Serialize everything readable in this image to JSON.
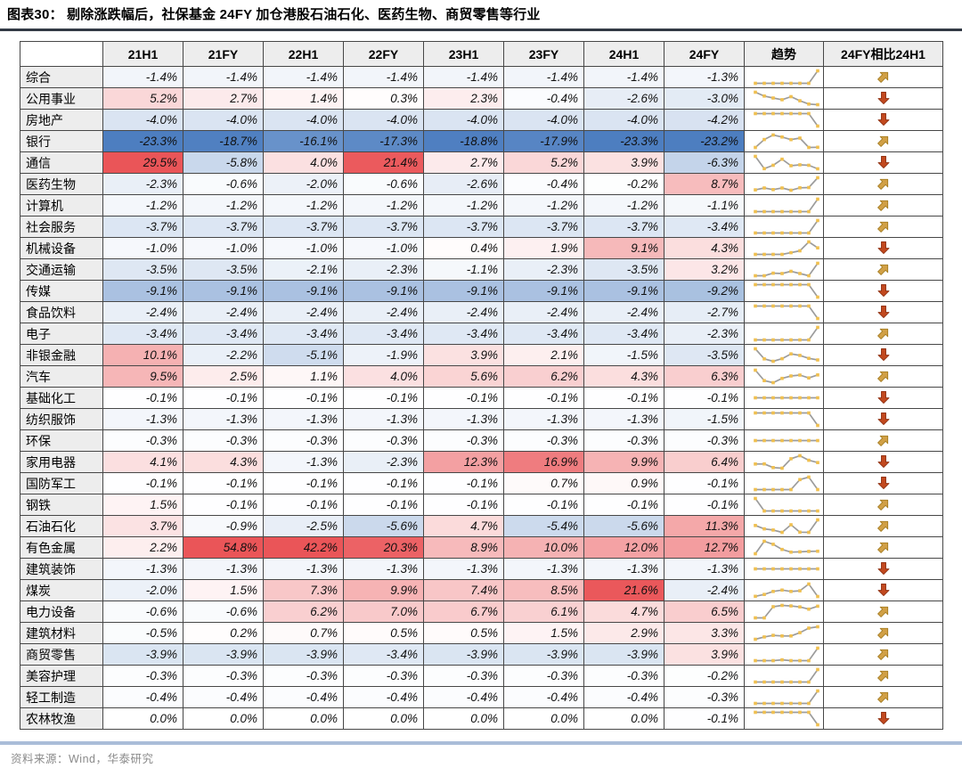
{
  "page": {
    "title": "图表30：  剔除涨跌幅后，社保基金 24FY 加仓港股石油石化、医药生物、商贸零售等行业",
    "source": "资料来源：Wind，华泰研究"
  },
  "colors": {
    "positive_max": "#ea5558",
    "negative_max": "#4d7ec0",
    "heat_mid": "#ffffff",
    "trend_line": "#9c9c9c",
    "trend_marker": "#f0c04f",
    "arrow_up_fill": "#d1a046",
    "arrow_up_stroke": "#a57d22",
    "arrow_down_fill": "#c2491f",
    "arrow_down_stroke": "#8f3012",
    "header_bg": "#ededed",
    "border": "#474747",
    "title_rule": "#333a45",
    "footer_rule": "#aabdd8",
    "footer_text": "#8a8a8a"
  },
  "chart_data": {
    "type": "table",
    "subtype": "heatmap-with-sparklines",
    "value_unit": "%",
    "value_format": "one_decimal_percent",
    "columns": [
      "21H1",
      "21FY",
      "22H1",
      "22FY",
      "23H1",
      "23FY",
      "24H1",
      "24FY",
      "趋势",
      "24FY相比24H1"
    ],
    "period_columns": [
      "21H1",
      "21FY",
      "22H1",
      "22FY",
      "23H1",
      "23FY",
      "24H1",
      "24FY"
    ],
    "trend_column_label": "趋势",
    "compare_column_label": "24FY相比24H1",
    "color_scale_note": "blue at most negative, white near zero, red at most positive",
    "rows": [
      {
        "label": "综合",
        "values": [
          -1.4,
          -1.4,
          -1.4,
          -1.4,
          -1.4,
          -1.4,
          -1.4,
          -1.3
        ],
        "arrow": "up"
      },
      {
        "label": "公用事业",
        "values": [
          5.2,
          2.7,
          1.4,
          0.3,
          2.3,
          -0.4,
          -2.6,
          -3.0
        ],
        "arrow": "down"
      },
      {
        "label": "房地产",
        "values": [
          -4.0,
          -4.0,
          -4.0,
          -4.0,
          -4.0,
          -4.0,
          -4.0,
          -4.2
        ],
        "arrow": "down"
      },
      {
        "label": "银行",
        "values": [
          -23.3,
          -18.7,
          -16.1,
          -17.3,
          -18.8,
          -17.9,
          -23.3,
          -23.2
        ],
        "arrow": "up"
      },
      {
        "label": "通信",
        "values": [
          29.5,
          -5.8,
          4.0,
          21.4,
          2.7,
          5.2,
          3.9,
          -6.3
        ],
        "arrow": "down"
      },
      {
        "label": "医药生物",
        "values": [
          -2.3,
          -0.6,
          -2.0,
          -0.6,
          -2.6,
          -0.4,
          -0.2,
          8.7
        ],
        "arrow": "up"
      },
      {
        "label": "计算机",
        "values": [
          -1.2,
          -1.2,
          -1.2,
          -1.2,
          -1.2,
          -1.2,
          -1.2,
          -1.1
        ],
        "arrow": "up"
      },
      {
        "label": "社会服务",
        "values": [
          -3.7,
          -3.7,
          -3.7,
          -3.7,
          -3.7,
          -3.7,
          -3.7,
          -3.4
        ],
        "arrow": "up"
      },
      {
        "label": "机械设备",
        "values": [
          -1.0,
          -1.0,
          -1.0,
          -1.0,
          0.4,
          1.9,
          9.1,
          4.3
        ],
        "arrow": "down"
      },
      {
        "label": "交通运输",
        "values": [
          -3.5,
          -3.5,
          -2.1,
          -2.3,
          -1.1,
          -2.3,
          -3.5,
          3.2
        ],
        "arrow": "up"
      },
      {
        "label": "传媒",
        "values": [
          -9.1,
          -9.1,
          -9.1,
          -9.1,
          -9.1,
          -9.1,
          -9.1,
          -9.2
        ],
        "arrow": "down"
      },
      {
        "label": "食品饮料",
        "values": [
          -2.4,
          -2.4,
          -2.4,
          -2.4,
          -2.4,
          -2.4,
          -2.4,
          -2.7
        ],
        "arrow": "down"
      },
      {
        "label": "电子",
        "values": [
          -3.4,
          -3.4,
          -3.4,
          -3.4,
          -3.4,
          -3.4,
          -3.4,
          -2.3
        ],
        "arrow": "up"
      },
      {
        "label": "非银金融",
        "values": [
          10.1,
          -2.2,
          -5.1,
          -1.9,
          3.9,
          2.1,
          -1.5,
          -3.5
        ],
        "arrow": "down"
      },
      {
        "label": "汽车",
        "values": [
          9.5,
          2.5,
          1.1,
          4.0,
          5.6,
          6.2,
          4.3,
          6.3
        ],
        "arrow": "up"
      },
      {
        "label": "基础化工",
        "values": [
          -0.1,
          -0.1,
          -0.1,
          -0.1,
          -0.1,
          -0.1,
          -0.1,
          -0.1
        ],
        "arrow": "down"
      },
      {
        "label": "纺织服饰",
        "values": [
          -1.3,
          -1.3,
          -1.3,
          -1.3,
          -1.3,
          -1.3,
          -1.3,
          -1.5
        ],
        "arrow": "down"
      },
      {
        "label": "环保",
        "values": [
          -0.3,
          -0.3,
          -0.3,
          -0.3,
          -0.3,
          -0.3,
          -0.3,
          -0.3
        ],
        "arrow": "up"
      },
      {
        "label": "家用电器",
        "values": [
          4.1,
          4.3,
          -1.3,
          -2.3,
          12.3,
          16.9,
          9.9,
          6.4
        ],
        "arrow": "down"
      },
      {
        "label": "国防军工",
        "values": [
          -0.1,
          -0.1,
          -0.1,
          -0.1,
          -0.1,
          0.7,
          0.9,
          -0.1
        ],
        "arrow": "down"
      },
      {
        "label": "钢铁",
        "values": [
          1.5,
          -0.1,
          -0.1,
          -0.1,
          -0.1,
          -0.1,
          -0.1,
          -0.1
        ],
        "arrow": "up"
      },
      {
        "label": "石油石化",
        "values": [
          3.7,
          -0.9,
          -2.5,
          -5.6,
          4.7,
          -5.4,
          -5.6,
          11.3
        ],
        "arrow": "up"
      },
      {
        "label": "有色金属",
        "values": [
          2.2,
          54.8,
          42.2,
          20.3,
          8.9,
          10.0,
          12.0,
          12.7
        ],
        "arrow": "up"
      },
      {
        "label": "建筑装饰",
        "values": [
          -1.3,
          -1.3,
          -1.3,
          -1.3,
          -1.3,
          -1.3,
          -1.3,
          -1.3
        ],
        "arrow": "down"
      },
      {
        "label": "煤炭",
        "values": [
          -2.0,
          1.5,
          7.3,
          9.9,
          7.4,
          8.5,
          21.6,
          -2.4
        ],
        "arrow": "down"
      },
      {
        "label": "电力设备",
        "values": [
          -0.6,
          -0.6,
          6.2,
          7.0,
          6.7,
          6.1,
          4.7,
          6.5
        ],
        "arrow": "up"
      },
      {
        "label": "建筑材料",
        "values": [
          -0.5,
          0.2,
          0.7,
          0.5,
          0.5,
          1.5,
          2.9,
          3.3
        ],
        "arrow": "up"
      },
      {
        "label": "商贸零售",
        "values": [
          -3.9,
          -3.9,
          -3.9,
          -3.4,
          -3.9,
          -3.9,
          -3.9,
          3.9
        ],
        "arrow": "up"
      },
      {
        "label": "美容护理",
        "values": [
          -0.3,
          -0.3,
          -0.3,
          -0.3,
          -0.3,
          -0.3,
          -0.3,
          -0.2
        ],
        "arrow": "up"
      },
      {
        "label": "轻工制造",
        "values": [
          -0.4,
          -0.4,
          -0.4,
          -0.4,
          -0.4,
          -0.4,
          -0.4,
          -0.3
        ],
        "arrow": "up"
      },
      {
        "label": "农林牧渔",
        "values": [
          0.0,
          0.0,
          0.0,
          0.0,
          0.0,
          0.0,
          0.0,
          -0.1
        ],
        "arrow": "down"
      }
    ]
  }
}
